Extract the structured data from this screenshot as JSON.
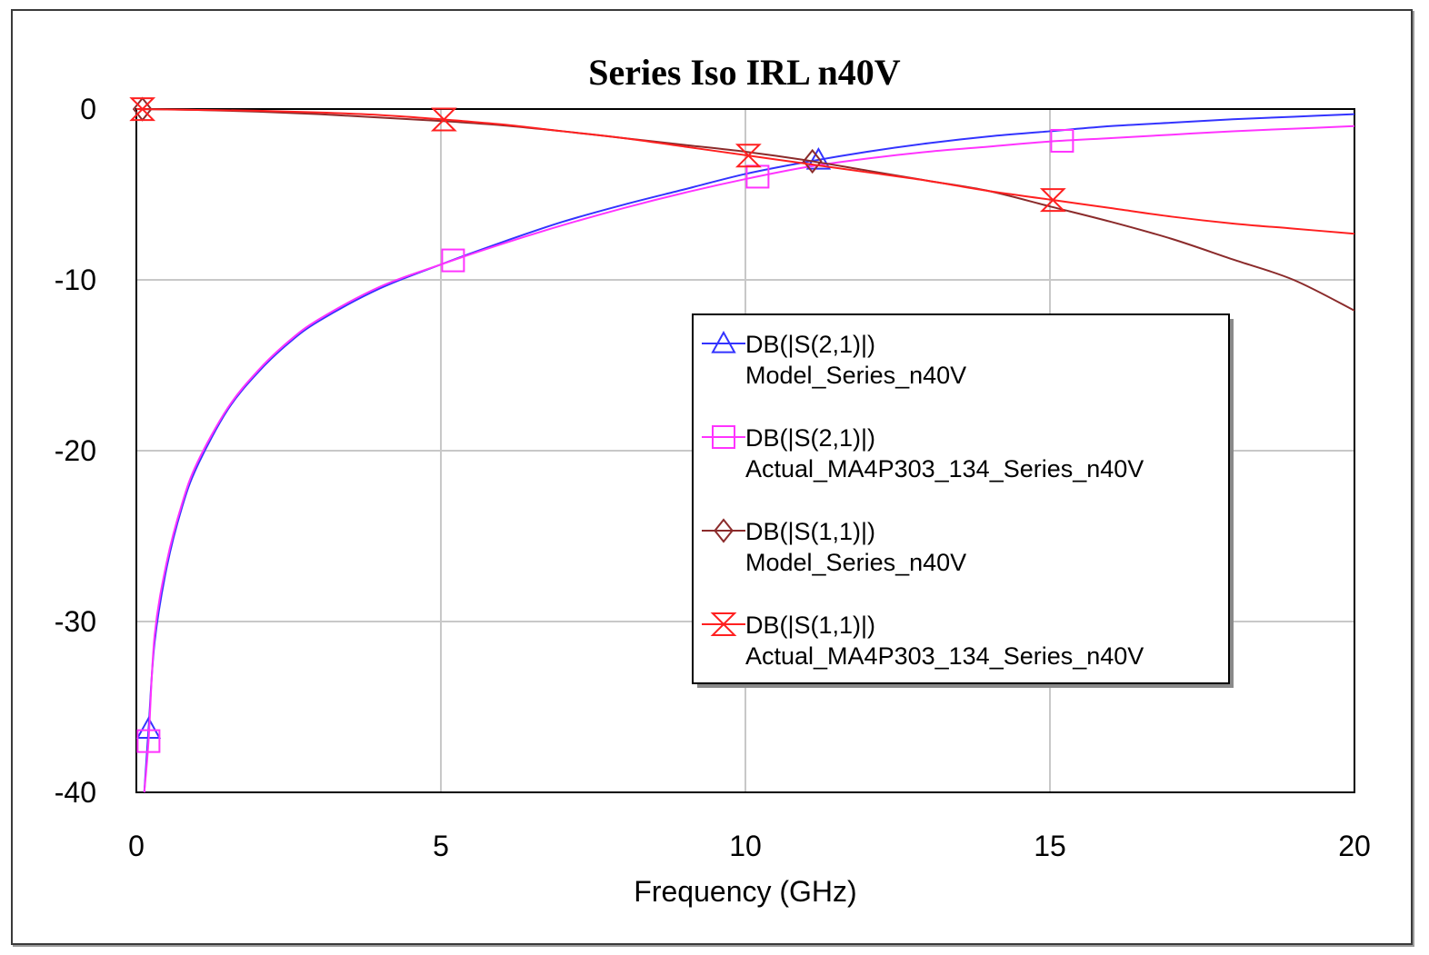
{
  "chart_data": {
    "type": "line",
    "title": "Series Iso IRL n40V",
    "xlabel": "Frequency (GHz)",
    "ylabel": "",
    "xlim": [
      0,
      20
    ],
    "ylim": [
      -40,
      0
    ],
    "xticks": [
      0,
      5,
      10,
      15,
      20
    ],
    "yticks": [
      0,
      -10,
      -20,
      -30,
      -40
    ],
    "grid": true,
    "legend_position": "center-right",
    "series": [
      {
        "name": "DB(|S(2,1)|)",
        "subtitle": "Model_Series_n40V",
        "color": "#3333ff",
        "marker": "triangle",
        "x": [
          0.13,
          0.2,
          0.3,
          0.5,
          0.75,
          1,
          1.5,
          2,
          2.5,
          3,
          4,
          5,
          6,
          7,
          8,
          9,
          10,
          11,
          12,
          13,
          14,
          15,
          16,
          17,
          18,
          19,
          20
        ],
        "y": [
          -40,
          -36.3,
          -31.2,
          -26.8,
          -23.3,
          -20.9,
          -17.6,
          -15.4,
          -13.7,
          -12.4,
          -10.5,
          -9.1,
          -7.8,
          -6.6,
          -5.6,
          -4.7,
          -3.8,
          -3.1,
          -2.5,
          -2.0,
          -1.6,
          -1.3,
          -1.0,
          -0.8,
          -0.6,
          -0.45,
          -0.3
        ]
      },
      {
        "name": "DB(|S(2,1)|)",
        "subtitle": "Actual_MA4P303_134_Series_n40V",
        "color": "#ff33ff",
        "marker": "square",
        "x": [
          0.13,
          0.2,
          0.3,
          0.5,
          0.75,
          1,
          1.5,
          2,
          2.5,
          3,
          4,
          5,
          6,
          7,
          8,
          9,
          10,
          11,
          12,
          13,
          14,
          15,
          16,
          17,
          18,
          19,
          20
        ],
        "y": [
          -40,
          -37.0,
          -30.8,
          -26.5,
          -23.1,
          -20.7,
          -17.5,
          -15.3,
          -13.6,
          -12.3,
          -10.4,
          -9.1,
          -7.9,
          -6.8,
          -5.8,
          -4.9,
          -4.1,
          -3.4,
          -2.9,
          -2.5,
          -2.2,
          -1.9,
          -1.7,
          -1.5,
          -1.3,
          -1.15,
          -1.0
        ]
      },
      {
        "name": "DB(|S(1,1)|)",
        "subtitle": "Model_Series_n40V",
        "color": "#8b2b2b",
        "marker": "diamond",
        "x": [
          0,
          1,
          2,
          3,
          4,
          5,
          6,
          7,
          8,
          9,
          10,
          11,
          12,
          13,
          14,
          15,
          16,
          17,
          18,
          19,
          20
        ],
        "y": [
          0,
          -0.05,
          -0.15,
          -0.3,
          -0.5,
          -0.7,
          -0.95,
          -1.3,
          -1.7,
          -2.1,
          -2.5,
          -3.0,
          -3.6,
          -4.2,
          -4.8,
          -5.7,
          -6.6,
          -7.6,
          -8.8,
          -10.0,
          -11.8
        ]
      },
      {
        "name": "DB(|S(1,1)|)",
        "subtitle": "Actual_MA4P303_134_Series_n40V",
        "color": "#ff2020",
        "marker": "hourglass",
        "x": [
          0,
          1,
          2,
          3,
          4,
          5,
          6,
          7,
          8,
          9,
          10,
          11,
          12,
          13,
          14,
          15,
          16,
          17,
          18,
          19,
          20
        ],
        "y": [
          0,
          -0.05,
          -0.1,
          -0.2,
          -0.35,
          -0.6,
          -0.9,
          -1.3,
          -1.7,
          -2.2,
          -2.7,
          -3.2,
          -3.7,
          -4.2,
          -4.8,
          -5.3,
          -5.8,
          -6.3,
          -6.7,
          -7.0,
          -7.3
        ]
      }
    ]
  }
}
